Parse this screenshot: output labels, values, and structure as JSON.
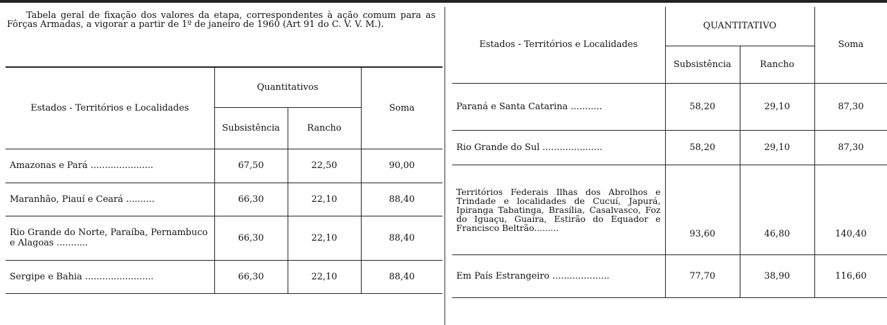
{
  "intro": "Tabela geral de fixação dos valores da etapa, correspondentes à ação comum para as Fôrças Armadas, a vigorar a partir de 1º de janeiro de 1960 (Art 91 do C. V. V. M.).",
  "left_table": {
    "headers": {
      "label": "Estados - Territórios e Localidades",
      "group": "Quantitativos",
      "sub": "Subsistência",
      "rancho": "Rancho",
      "soma": "Soma"
    },
    "rows": [
      {
        "label": "Amazonas e Pará ......................",
        "sub": "67,50",
        "rancho": "22,50",
        "soma": "90,00"
      },
      {
        "label": "Maranhão, Piauí e Ceará ..........",
        "sub": "66,30",
        "rancho": "22,10",
        "soma": "88,40"
      },
      {
        "label": "Rio Grande do Norte, Paraíba, Pernambuco e Alagoas ...........",
        "sub": "66,30",
        "rancho": "22,10",
        "soma": "88,40"
      },
      {
        "label": "Sergipe e Bahia ........................",
        "sub": "66,30",
        "rancho": "22,10",
        "soma": "88,40"
      }
    ]
  },
  "right_table": {
    "headers": {
      "label": "Estados - Territórios e Localidades",
      "group": "QUANTITATIVO",
      "sub": "Subsistência",
      "rancho": "Rancho",
      "soma": "Soma"
    },
    "rows": [
      {
        "label": "Paraná e Santa Catarina ...........",
        "sub": "58,20",
        "rancho": "29,10",
        "soma": "87,30"
      },
      {
        "label": "Rio Grande do Sul .....................",
        "sub": "58,20",
        "rancho": "29,10",
        "soma": "87,30"
      },
      {
        "label": "Territórios Federais Ilhas dos Abrolhos e Trindade e localidades de Cucuí, Japurá, Ipiranga Tabatinga, Brasília, Casalvasco, Foz do Iguaçu, Guaíra, Estirão do Equador e Francisco Beltrão.........",
        "sub": "93,60",
        "rancho": "46,80",
        "soma": "140,40"
      },
      {
        "label": "Em País Estrangeiro ....................",
        "sub": "77,70",
        "rancho": "38,90",
        "soma": "116,60"
      }
    ]
  }
}
